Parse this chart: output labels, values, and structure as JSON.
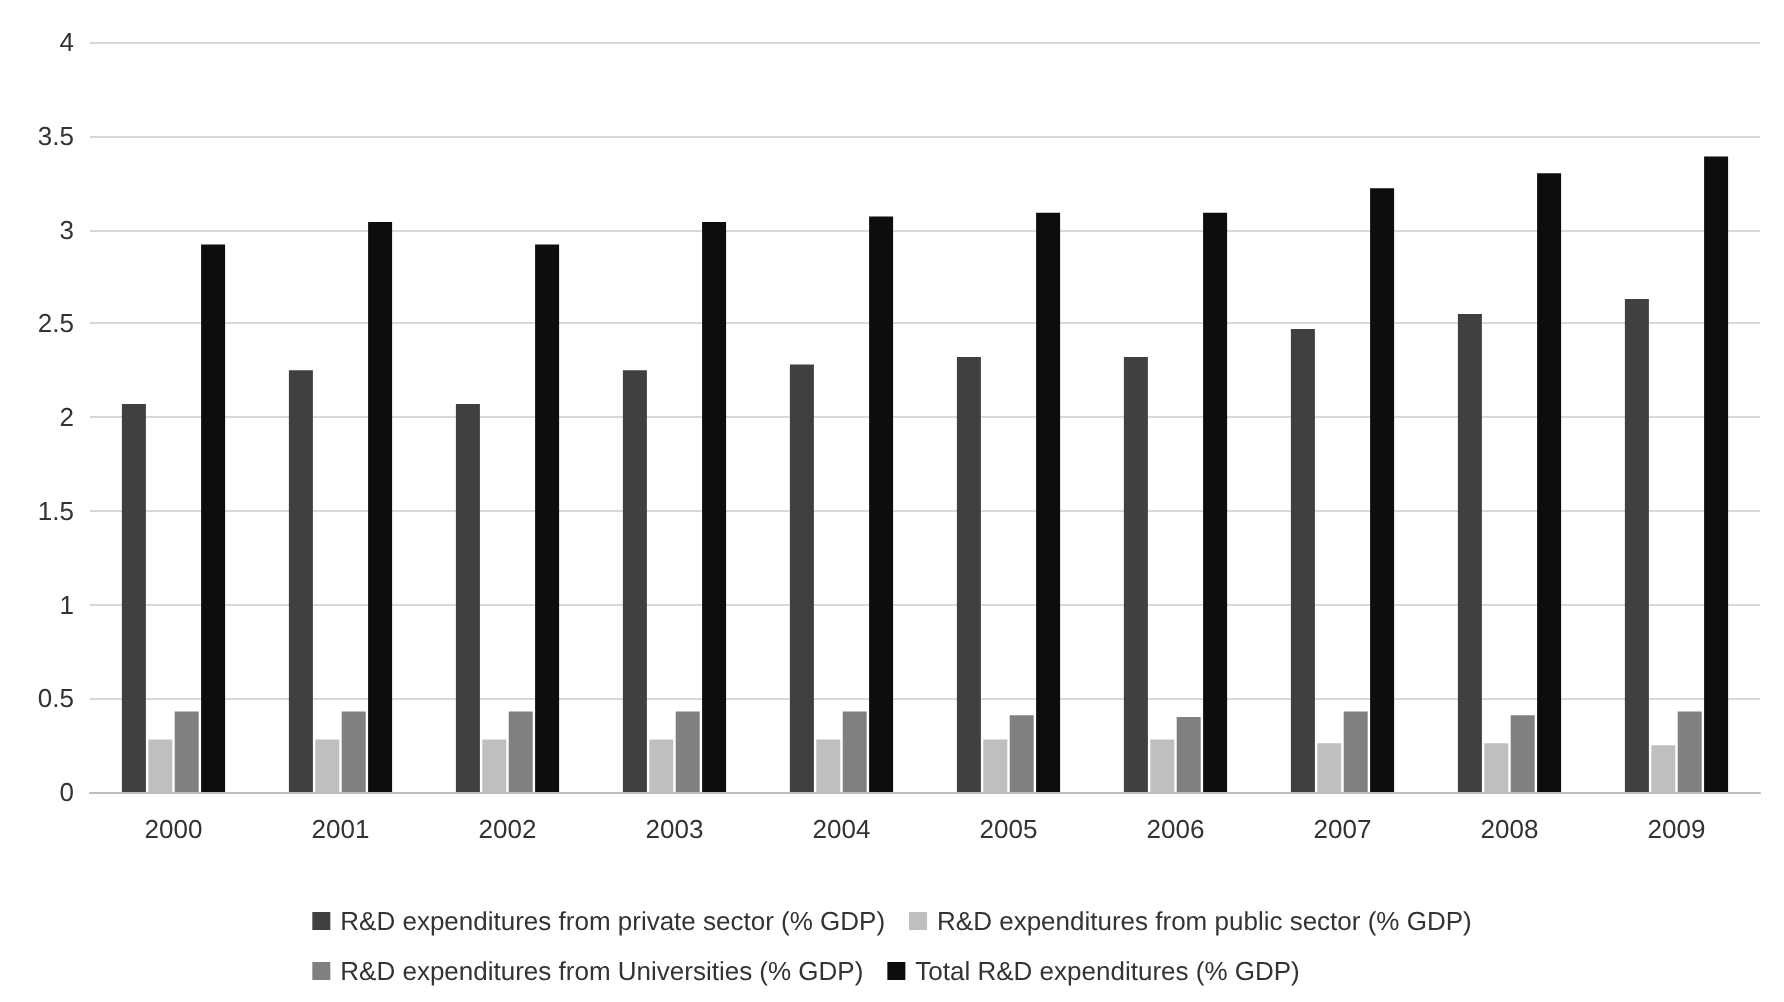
{
  "chart_data": {
    "type": "bar",
    "categories": [
      "2000",
      "2001",
      "2002",
      "2003",
      "2004",
      "2005",
      "2006",
      "2007",
      "2008",
      "2009"
    ],
    "series": [
      {
        "name": "R&D expenditures from private sector (% GDP)",
        "color": "#404040",
        "values": [
          2.07,
          2.25,
          2.07,
          2.25,
          2.28,
          2.32,
          2.32,
          2.47,
          2.55,
          2.63
        ]
      },
      {
        "name": "R&D expenditures from public sector (% GDP)",
        "color": "#bfbfbf",
        "values": [
          0.28,
          0.28,
          0.28,
          0.28,
          0.28,
          0.28,
          0.28,
          0.26,
          0.26,
          0.25
        ]
      },
      {
        "name": "R&D expenditures from Universities (% GDP)",
        "color": "#808080",
        "values": [
          0.43,
          0.43,
          0.43,
          0.43,
          0.43,
          0.41,
          0.4,
          0.43,
          0.41,
          0.43
        ]
      },
      {
        "name": "Total R&D expenditures (% GDP)",
        "color": "#0d0d0d",
        "values": [
          2.92,
          3.04,
          2.92,
          3.04,
          3.07,
          3.09,
          3.09,
          3.22,
          3.3,
          3.39
        ]
      }
    ],
    "ylim": [
      0,
      4
    ],
    "yticks": [
      0,
      0.5,
      1,
      1.5,
      2,
      2.5,
      3,
      3.5,
      4
    ],
    "grid": "y",
    "legend": "bottom"
  }
}
